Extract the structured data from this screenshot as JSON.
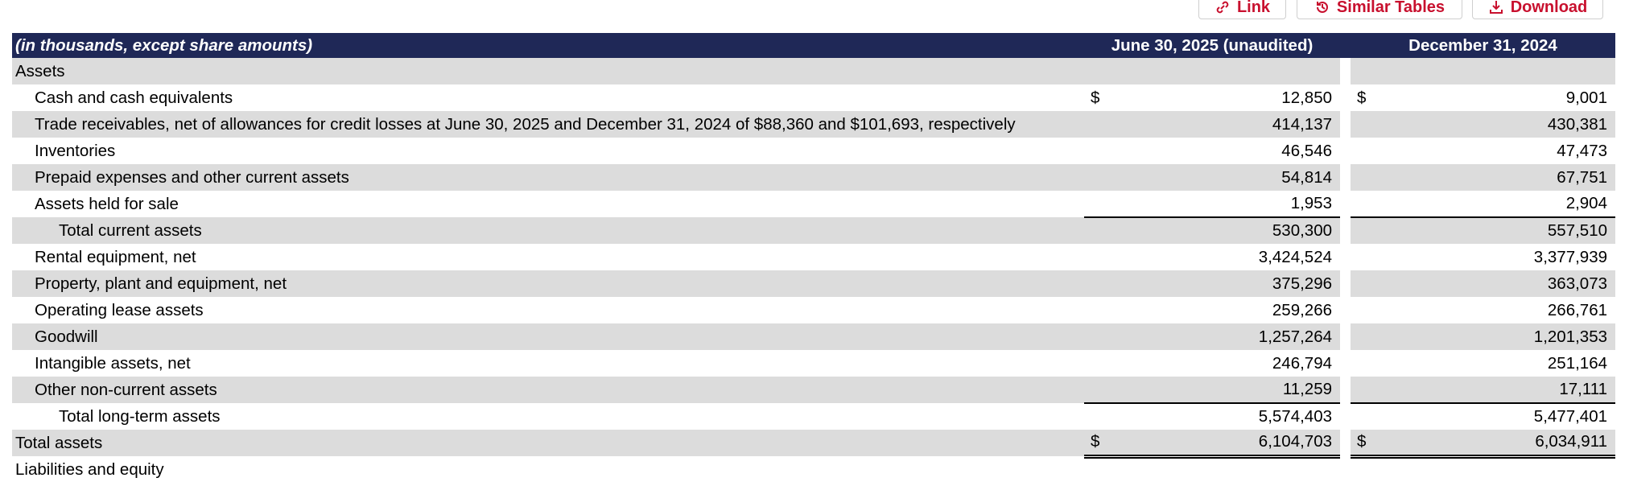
{
  "buttons": [
    "Link",
    "Similar Tables",
    "Download"
  ],
  "table": {
    "header": [
      "(in thousands, except share amounts)",
      "June 30, 2025 (unaudited)",
      "December 31, 2024"
    ],
    "rows": [
      {
        "label": "Assets"
      },
      {
        "label": "Cash and cash equivalents",
        "current_symbol": "$",
        "current": "12,850",
        "prior_symbol": "$",
        "prior": "9,001"
      },
      {
        "label": "Trade receivables, net of allowances for credit losses at June 30, 2025 and December 31, 2024 of $88,360 and $101,693, respectively",
        "current": "414,137",
        "prior": "430,381"
      },
      {
        "label": "Inventories",
        "current": "46,546",
        "prior": "47,473"
      },
      {
        "label": "Prepaid expenses and other current assets",
        "current": "54,814",
        "prior": "67,751"
      },
      {
        "label": "Assets held for sale",
        "current": "1,953",
        "prior": "2,904"
      },
      {
        "label": "Total current assets",
        "current": "530,300",
        "prior": "557,510"
      },
      {
        "label": "Rental equipment, net",
        "current": "3,424,524",
        "prior": "3,377,939"
      },
      {
        "label": "Property, plant and equipment, net",
        "current": "375,296",
        "prior": "363,073"
      },
      {
        "label": "Operating lease assets",
        "current": "259,266",
        "prior": "266,761"
      },
      {
        "label": "Goodwill",
        "current": "1,257,264",
        "prior": "1,201,353"
      },
      {
        "label": "Intangible assets, net",
        "current": "246,794",
        "prior": "251,164"
      },
      {
        "label": "Other non-current assets",
        "current": "11,259",
        "prior": "17,111"
      },
      {
        "label": "Total long-term assets",
        "current": "5,574,403",
        "prior": "5,477,401"
      },
      {
        "label": "Total assets",
        "current_symbol": "$",
        "current": "6,104,703",
        "prior_symbol": "$",
        "prior": "6,034,911"
      },
      {
        "label": "Liabilities and equity"
      }
    ]
  }
}
